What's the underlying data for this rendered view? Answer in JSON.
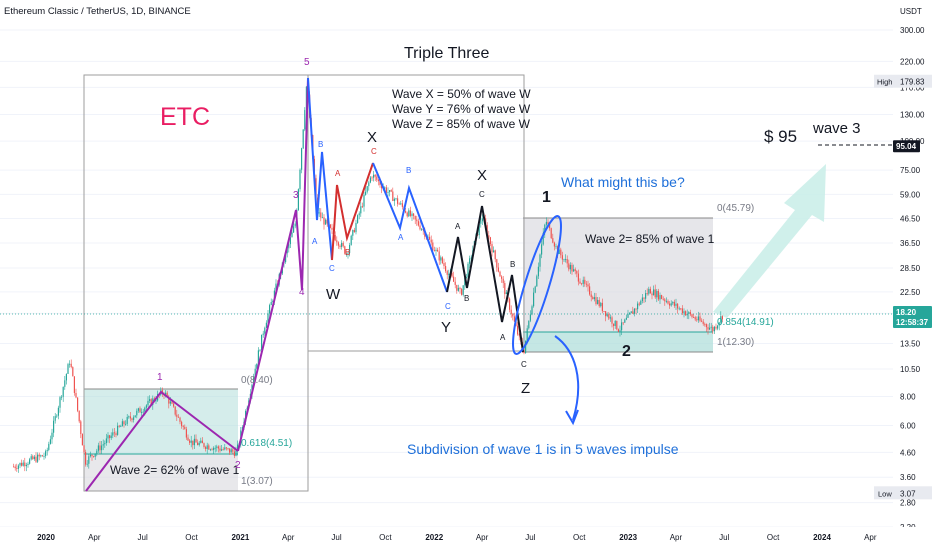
{
  "header": {
    "symbol_title": "Ethereum Classic / TetherUS, 1D, BINANCE"
  },
  "price_axis": {
    "currency": "USDT",
    "ticks": [
      "300.00",
      "220.00",
      "170.00",
      "130.00",
      "100.00",
      "75.00",
      "59.00",
      "46.50",
      "36.50",
      "28.50",
      "22.50",
      "18.20",
      "13.50",
      "10.50",
      "8.00",
      "6.00",
      "4.60",
      "3.60",
      "2.80",
      "2.20"
    ],
    "high_label": "High",
    "high_value": "179.83",
    "low_label": "Low",
    "low_value": "3.07",
    "target_value": "95.04",
    "current_price": "18.20",
    "countdown": "12:58:37"
  },
  "time_axis": {
    "labels": [
      "2020",
      "Apr",
      "Jul",
      "Oct",
      "2021",
      "Apr",
      "Jul",
      "Oct",
      "2022",
      "Apr",
      "Jul",
      "Oct",
      "2023",
      "Apr",
      "Jul",
      "Oct",
      "2024",
      "Apr"
    ]
  },
  "annotations": {
    "etc_label": "ETC",
    "triple_three": "Triple Three",
    "wave_x_ratio": "Wave X = 50% of wave W",
    "wave_y_ratio": "Wave Y = 76% of wave W",
    "wave_z_ratio": "Wave Z = 85%  of wave W",
    "what_might": "What might this be?",
    "wave2_85": "Wave 2= 85% of wave 1",
    "wave2_62": "Wave 2= 62% of wave 1",
    "subdivision": "Subdivision of wave 1 is in 5 waves impulse",
    "target_price": "$ 95",
    "wave3": "wave 3",
    "label_1_big": "1",
    "label_2_big": "2",
    "label_W": "W",
    "label_X1": "X",
    "label_Y": "Y",
    "label_X2": "X",
    "label_Z": "Z",
    "label_1_small": "1",
    "label_2_small": "2",
    "label_3_small": "3",
    "label_4_small": "4",
    "label_5_small": "5",
    "fib_0_right": "0(45.79)",
    "fib_0854_right": "0.854(14.91)",
    "fib_1_right": "1(12.30)",
    "fib_0_left": "0(8.40)",
    "fib_0618_left": "0.618(4.51)",
    "fib_1_left": "1(3.07)"
  },
  "colors": {
    "up": "#26a69a",
    "down": "#ef5350",
    "purple": "#9c27b0",
    "blue": "#2962ff",
    "black": "#131722",
    "etc_red": "#e91e63",
    "annot_blue": "#1e6fd9",
    "teal_zone": "#b2dfdb",
    "grey_zone": "#d9d9de",
    "arrow_fill": "#c8ede8"
  },
  "chart_data": {
    "type": "candlestick",
    "title": "Ethereum Classic / TetherUS, 1D, BINANCE",
    "y_scale": "log",
    "ylim": [
      2.2,
      300
    ],
    "unit": "USDT",
    "x_range": [
      "2019-11",
      "2024-05"
    ],
    "path_points": [
      {
        "x": "2019-11",
        "y": 4.0
      },
      {
        "x": "2020-01",
        "y": 4.5
      },
      {
        "x": "2020-02-15",
        "y": 11.5
      },
      {
        "x": "2020-03-15",
        "y": 4.2
      },
      {
        "x": "2020-06",
        "y": 6.3
      },
      {
        "x": "2020-08-10",
        "y": 8.4
      },
      {
        "x": "2020-09-30",
        "y": 5.1
      },
      {
        "x": "2020-12-25",
        "y": 4.6
      },
      {
        "x": "2021-02-15",
        "y": 16
      },
      {
        "x": "2021-04-15",
        "y": 45
      },
      {
        "x": "2021-05-06",
        "y": 179.83
      },
      {
        "x": "2021-05-25",
        "y": 50
      },
      {
        "x": "2021-07-20",
        "y": 33
      },
      {
        "x": "2021-09-05",
        "y": 72
      },
      {
        "x": "2021-12-10",
        "y": 42
      },
      {
        "x": "2022-02-20",
        "y": 22
      },
      {
        "x": "2022-04-01",
        "y": 48
      },
      {
        "x": "2022-06-18",
        "y": 12.3
      },
      {
        "x": "2022-07-30",
        "y": 45.79
      },
      {
        "x": "2022-08-20",
        "y": 34
      },
      {
        "x": "2022-12-15",
        "y": 15.5
      },
      {
        "x": "2023-02-10",
        "y": 23
      },
      {
        "x": "2023-06-10",
        "y": 15.5
      },
      {
        "x": "2023-06-30",
        "y": 18.2
      }
    ],
    "fib_levels": [
      {
        "name": "0",
        "value": 45.79
      },
      {
        "name": "0.854",
        "value": 14.91
      },
      {
        "name": "1",
        "value": 12.3
      },
      {
        "name": "0",
        "value": 8.4
      },
      {
        "name": "0.618",
        "value": 4.51
      },
      {
        "name": "1",
        "value": 3.07
      }
    ],
    "target": 95.04
  }
}
